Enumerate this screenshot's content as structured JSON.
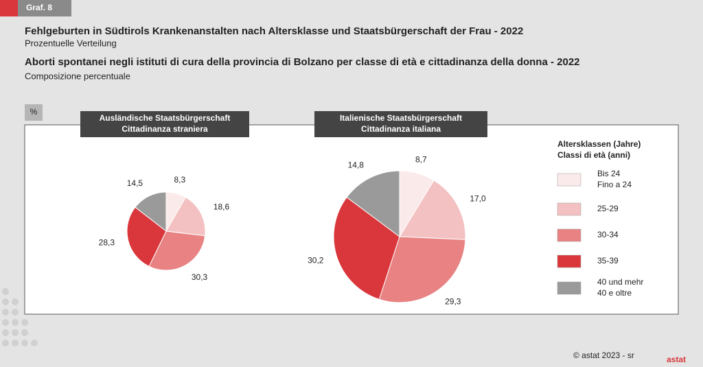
{
  "badge": "Graf. 8",
  "header": {
    "title_de": "Fehlgeburten in Südtirols Krankenanstalten nach Altersklasse und Staatsbürgerschaft der Frau - 2022",
    "subtitle_de": "Prozentuelle Verteilung",
    "title_it": "Aborti spontanei negli istituti di cura della provincia di Bolzano per classe di età e cittadinanza della donna - 2022",
    "subtitle_it": "Composizione percentuale"
  },
  "unit": "%",
  "legend": {
    "title": [
      "Altersklassen (Jahre)",
      "Classi di età (anni)"
    ],
    "categories": [
      [
        "Bis 24",
        "Fino a 24"
      ],
      [
        "25-29"
      ],
      [
        "30-34"
      ],
      [
        "35-39"
      ],
      [
        "40 und mehr",
        "40 e oltre"
      ]
    ],
    "colors": [
      "#fbeaea",
      "#f3c1c2",
      "#e88283",
      "#d9373b",
      "#9a9a9a"
    ]
  },
  "chart_data": [
    {
      "type": "pie",
      "title": [
        "Ausländische Staatsbürgerschaft",
        "Cittadinanza straniera"
      ],
      "values": [
        8.3,
        18.6,
        30.3,
        28.3,
        14.5
      ],
      "value_labels": [
        "8,3",
        "18,6",
        "30,3",
        "28,3",
        "14,5"
      ]
    },
    {
      "type": "pie",
      "title": [
        "Italienische Staatsbürgerschaft",
        "Cittadinanza italiana"
      ],
      "values": [
        8.7,
        17.0,
        29.3,
        30.2,
        14.8
      ],
      "value_labels": [
        "8,7",
        "17,0",
        "29,3",
        "30,2",
        "14,8"
      ]
    }
  ],
  "footer": "© astat 2023 - sr",
  "logo": "astat"
}
